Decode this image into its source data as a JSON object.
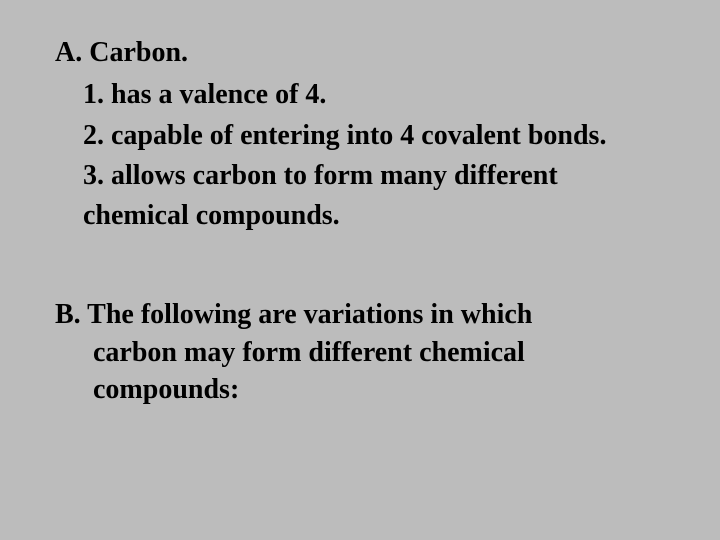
{
  "background_color": "#bcbcbc",
  "text_color": "#000000",
  "font_family": "Times New Roman",
  "font_size_pt": 21,
  "font_weight": "bold",
  "sectionA": {
    "heading": "A. Carbon.",
    "items": [
      "1. has a valence of 4.",
      "2. capable of entering into 4 covalent bonds.",
      "3. allows carbon to form many different",
      "chemical compounds."
    ]
  },
  "sectionB": {
    "lines": [
      "B. The following are variations in which",
      "carbon may form different chemical",
      "compounds:"
    ]
  }
}
